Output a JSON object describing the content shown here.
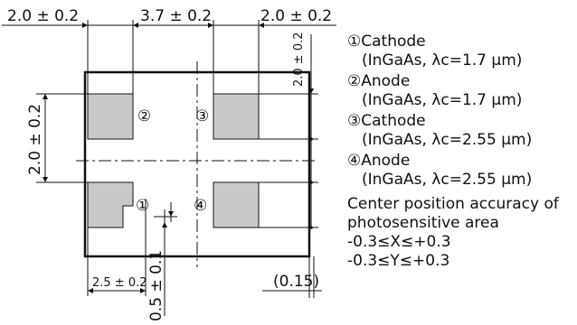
{
  "dimensions": {
    "top_left": "2.0 ± 0.2",
    "top_center": "3.7 ± 0.2",
    "top_right": "2.0 ± 0.2",
    "right_vertical": "2.0 ± 0.2",
    "left_vertical": "2.0 ± 0.2",
    "bottom_left": "2.5 ± 0.2",
    "bottom_center_vertical": "0.5 ± 0.1",
    "bottom_right": "(0.15)"
  },
  "pads": [
    {
      "number": "②"
    },
    {
      "number": "③"
    },
    {
      "number": "①"
    },
    {
      "number": "④"
    }
  ],
  "legend": [
    {
      "title": "①Cathode",
      "detail": "(InGaAs, λc=1.7 μm)"
    },
    {
      "title": "②Anode",
      "detail": "(InGaAs, λc=1.7 μm)"
    },
    {
      "title": "③Cathode",
      "detail": "(InGaAs, λc=2.55 μm)"
    },
    {
      "title": "④Anode",
      "detail": "(InGaAs, λc=2.55 μm)"
    }
  ],
  "note": {
    "line1": "Center position accuracy of",
    "line2": "photosensitive area",
    "line3": "-0.3≤X≤+0.3",
    "line4": "-0.3≤Y≤+0.3"
  },
  "colors": {
    "pad_fill": "#c9c9c9",
    "line": "#111111"
  }
}
